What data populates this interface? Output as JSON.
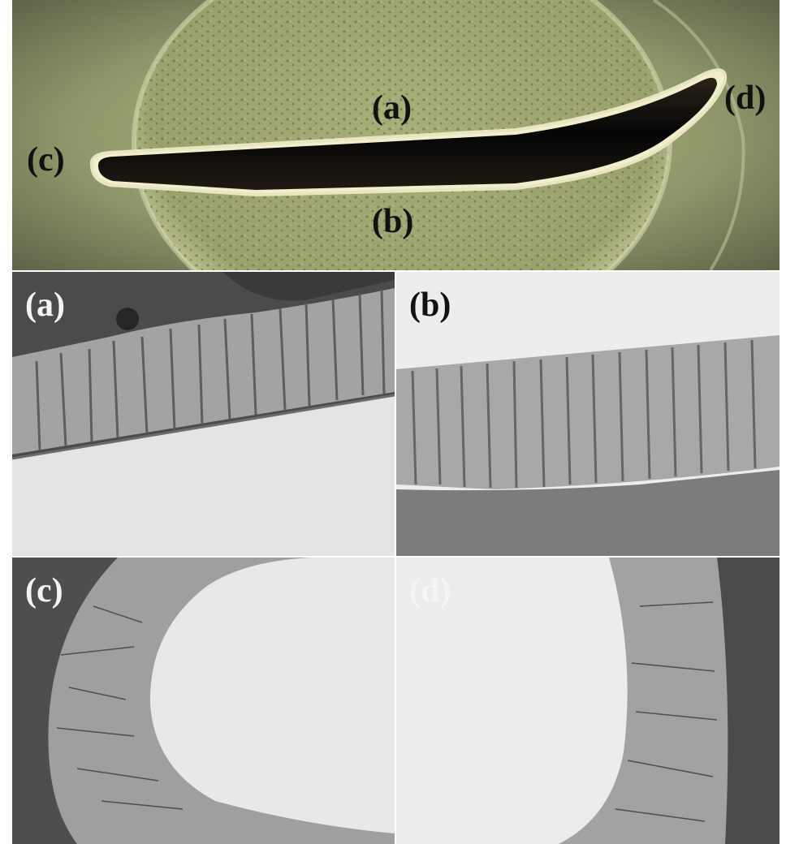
{
  "figure": {
    "overview_labels": {
      "a": "(a)",
      "b": "(b)",
      "c": "(c)",
      "d": "(d)"
    },
    "micrograph_labels": {
      "a": "(a)",
      "b": "(b)",
      "c": "(c)",
      "d": "(d)"
    }
  },
  "colors": {
    "overview_green": "#a9b07e",
    "coating_grey": "#a6a6a6",
    "substrate_light": "#e6e6e6",
    "mount_dark": "#505050"
  }
}
